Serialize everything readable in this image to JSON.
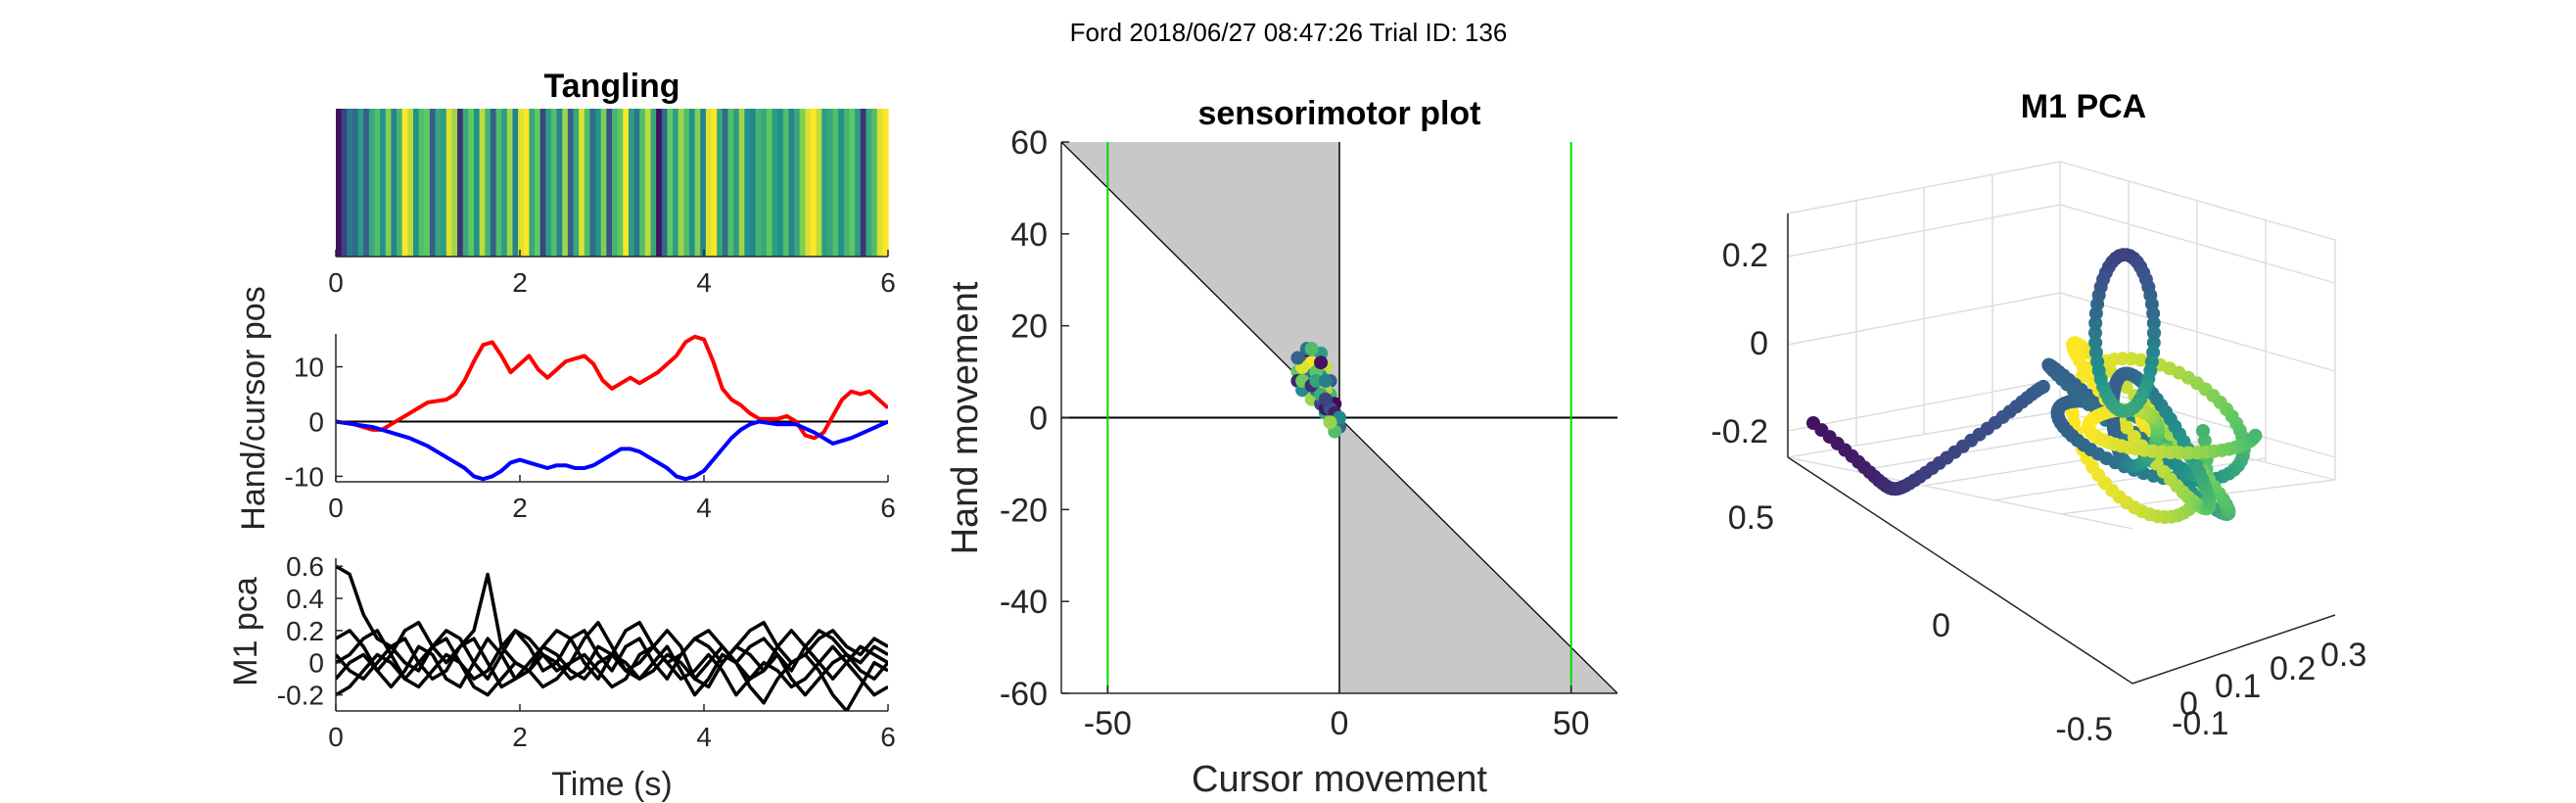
{
  "figure": {
    "suptitle": "Ford 2018/06/27 08:47:26 Trial ID: 136"
  },
  "colors": {
    "hand": "#0000ff",
    "cursor": "#ff0000",
    "pca_lines": "#000000",
    "feasible_region": "#c8c8c8",
    "boundary_lines": "#00dd00",
    "colormap": "viridis"
  },
  "chart_data": [
    {
      "id": "tangling",
      "type": "heatmap",
      "title": "Tangling",
      "xlabel": "",
      "ylabel": "",
      "xlim": [
        0,
        6
      ],
      "xticks": [
        "0",
        "2",
        "4",
        "6"
      ],
      "colormap": "viridis",
      "values": [
        0.05,
        0.2,
        0.4,
        0.35,
        0.55,
        0.3,
        0.6,
        0.7,
        0.5,
        0.8,
        0.45,
        0.65,
        1.0,
        0.9,
        0.5,
        0.7,
        0.75,
        0.3,
        0.6,
        0.55,
        0.95,
        0.85,
        0.15,
        0.6,
        0.75,
        0.5,
        0.9,
        0.65,
        0.3,
        0.7,
        0.55,
        0.85,
        0.45,
        0.95,
        1.0,
        0.6,
        0.75,
        0.2,
        0.55,
        0.7,
        0.45,
        0.85,
        0.3,
        0.6,
        0.95,
        0.7,
        0.35,
        0.5,
        0.8,
        0.25,
        0.65,
        0.75,
        1.0,
        0.55,
        0.4,
        0.7,
        0.9,
        0.6,
        0.05,
        0.35,
        0.75,
        0.55,
        0.85,
        0.7,
        0.5,
        0.8,
        0.45,
        0.95,
        1.0,
        0.6,
        0.35,
        0.7,
        0.55,
        0.85,
        0.5,
        0.45,
        0.65,
        0.6,
        0.75,
        0.55,
        0.5,
        0.7,
        0.45,
        0.6,
        0.8,
        0.95,
        1.0,
        0.9,
        0.55,
        0.6,
        0.7,
        0.5,
        0.65,
        0.75,
        0.55,
        0.15,
        0.6,
        0.7,
        0.95,
        1.0
      ]
    },
    {
      "id": "hand-cursor",
      "type": "line",
      "title": "",
      "xlabel": "",
      "ylabel": "Hand/cursor pos",
      "xlim": [
        0,
        6
      ],
      "ylim": [
        -11,
        16
      ],
      "xticks": [
        "0",
        "2",
        "4",
        "6"
      ],
      "yticks": [
        "-10",
        "0",
        "10"
      ],
      "series": [
        {
          "color": "#ff0000",
          "x": [
            0,
            0.2,
            0.4,
            0.5,
            0.6,
            0.8,
            1.0,
            1.2,
            1.3,
            1.4,
            1.5,
            1.6,
            1.7,
            1.8,
            1.9,
            2.0,
            2.1,
            2.2,
            2.3,
            2.4,
            2.5,
            2.6,
            2.7,
            2.8,
            2.9,
            3.0,
            3.1,
            3.2,
            3.3,
            3.4,
            3.5,
            3.6,
            3.7,
            3.8,
            3.9,
            4.0,
            4.1,
            4.2,
            4.3,
            4.4,
            4.5,
            4.6,
            4.7,
            4.8,
            4.9,
            5.0,
            5.1,
            5.2,
            5.3,
            5.4,
            5.5,
            5.6,
            5.7,
            5.8,
            5.9,
            6.0
          ],
          "y": [
            0,
            -0.5,
            -1.5,
            -1.5,
            -0.5,
            1.5,
            3.5,
            4,
            5,
            7.5,
            11,
            14,
            14.5,
            12,
            9,
            10.5,
            12,
            9.5,
            8,
            9.5,
            11,
            11.5,
            12,
            10.5,
            7.5,
            6,
            7,
            8,
            7,
            8,
            9,
            10.5,
            12,
            14.5,
            15.5,
            15,
            11,
            6,
            4,
            3,
            1.5,
            0.5,
            0.5,
            0.5,
            1,
            0,
            -2.5,
            -3,
            -2,
            1,
            4,
            5.5,
            5,
            5.5,
            4,
            2.5
          ]
        },
        {
          "color": "#0000ff",
          "x": [
            0,
            0.2,
            0.4,
            0.6,
            0.8,
            1.0,
            1.2,
            1.4,
            1.5,
            1.6,
            1.7,
            1.8,
            1.9,
            2.0,
            2.1,
            2.2,
            2.3,
            2.4,
            2.5,
            2.6,
            2.7,
            2.8,
            2.9,
            3.0,
            3.1,
            3.2,
            3.3,
            3.4,
            3.5,
            3.6,
            3.7,
            3.8,
            3.9,
            4.0,
            4.1,
            4.2,
            4.3,
            4.4,
            4.5,
            4.6,
            4.8,
            5.0,
            5.2,
            5.4,
            5.6,
            5.8,
            6.0
          ],
          "y": [
            0,
            -0.5,
            -1,
            -2,
            -3,
            -4.5,
            -6.5,
            -8.5,
            -10,
            -10.5,
            -10,
            -9,
            -7.5,
            -7,
            -7.5,
            -8,
            -8.5,
            -8,
            -8,
            -8.5,
            -8.5,
            -8,
            -7,
            -6,
            -5,
            -5,
            -5.5,
            -6.5,
            -7.5,
            -8.5,
            -10,
            -10.5,
            -10,
            -9,
            -7,
            -5,
            -3,
            -1.5,
            -0.5,
            0,
            -0.5,
            -0.5,
            -2,
            -4,
            -3,
            -1.5,
            0
          ]
        }
      ],
      "reference_line": {
        "y": 0,
        "color": "#000000"
      }
    },
    {
      "id": "m1-pca",
      "type": "line",
      "title": "",
      "xlabel": "Time (s)",
      "ylabel": "M1 pca",
      "xlim": [
        0,
        6
      ],
      "ylim": [
        -0.3,
        0.65
      ],
      "xticks": [
        "0",
        "2",
        "4",
        "6"
      ],
      "yticks": [
        "0.6",
        "0.4",
        "0.2",
        "0",
        "-0.2"
      ],
      "series_count": 6,
      "series": [
        {
          "y": [
            0.6,
            0.55,
            0.3,
            0.15,
            0.1,
            0.0,
            -0.05,
            0.1,
            0.2,
            0.15,
            0.0,
            -0.1,
            0.05,
            0.2,
            0.1,
            -0.05,
            0.0,
            0.15,
            0.2,
            0.05,
            -0.05,
            0.1,
            0.15,
            0.0,
            -0.1,
            0.05,
            0.15,
            0.2,
            0.1,
            0.0,
            0.1,
            0.15,
            0.05,
            -0.05,
            0.1,
            0.2,
            0.15,
            0.05,
            0.0,
            0.1,
            0.05
          ]
        },
        {
          "y": [
            0.15,
            0.2,
            0.1,
            -0.05,
            0.05,
            0.2,
            0.25,
            0.1,
            0.0,
            0.1,
            0.2,
            0.55,
            0.1,
            0.0,
            -0.05,
            0.1,
            0.2,
            0.15,
            0.0,
            -0.1,
            0.05,
            0.2,
            0.25,
            0.1,
            0.0,
            0.05,
            0.15,
            0.1,
            0.0,
            0.1,
            0.2,
            0.25,
            0.1,
            0.0,
            0.05,
            0.15,
            0.2,
            0.1,
            0.05,
            0.15,
            0.1
          ]
        },
        {
          "y": [
            0.0,
            0.05,
            0.15,
            0.2,
            0.05,
            -0.1,
            0.0,
            0.1,
            0.15,
            0.0,
            -0.1,
            -0.05,
            0.1,
            0.2,
            0.15,
            0.05,
            -0.05,
            0.0,
            0.15,
            0.25,
            0.1,
            -0.05,
            0.0,
            0.1,
            0.2,
            0.1,
            -0.1,
            -0.15,
            0.0,
            0.1,
            0.05,
            -0.05,
            0.1,
            0.2,
            0.1,
            0.0,
            -0.1,
            0.0,
            0.1,
            0.05,
            0.0
          ]
        },
        {
          "y": [
            -0.1,
            0.0,
            0.05,
            -0.05,
            -0.15,
            -0.05,
            0.1,
            0.05,
            -0.1,
            -0.15,
            0.0,
            0.15,
            0.05,
            -0.1,
            -0.05,
            0.05,
            0.0,
            -0.1,
            -0.05,
            0.1,
            0.05,
            -0.05,
            -0.1,
            0.0,
            0.1,
            -0.05,
            -0.2,
            -0.1,
            0.05,
            0.0,
            -0.1,
            -0.05,
            0.05,
            -0.1,
            -0.2,
            -0.1,
            0.0,
            0.05,
            -0.05,
            -0.1,
            0.0
          ]
        },
        {
          "y": [
            0.05,
            -0.05,
            -0.1,
            0.0,
            0.1,
            0.15,
            0.0,
            -0.1,
            -0.05,
            0.1,
            0.15,
            0.0,
            -0.15,
            -0.1,
            0.0,
            0.1,
            0.05,
            -0.05,
            -0.1,
            0.0,
            0.05,
            0.0,
            -0.1,
            -0.05,
            0.05,
            0.0,
            -0.1,
            0.0,
            0.1,
            0.0,
            -0.15,
            -0.25,
            -0.1,
            0.0,
            0.05,
            -0.05,
            -0.2,
            -0.3,
            -0.15,
            0.0,
            -0.05
          ]
        },
        {
          "y": [
            -0.2,
            -0.15,
            -0.05,
            0.05,
            0.0,
            -0.1,
            -0.15,
            -0.05,
            0.05,
            0.0,
            -0.15,
            -0.2,
            -0.1,
            0.0,
            -0.05,
            -0.15,
            -0.1,
            0.0,
            0.05,
            -0.05,
            -0.15,
            -0.1,
            0.05,
            0.1,
            0.0,
            -0.1,
            -0.05,
            0.05,
            -0.05,
            -0.2,
            -0.1,
            0.0,
            -0.05,
            -0.15,
            -0.1,
            0.0,
            0.1,
            0.0,
            -0.1,
            -0.2,
            -0.15
          ]
        }
      ]
    },
    {
      "id": "sensorimotor",
      "type": "scatter",
      "title": "sensorimotor plot",
      "xlabel": "Cursor movement",
      "ylabel": "Hand movement",
      "xlim": [
        -60,
        60
      ],
      "ylim": [
        -60,
        60
      ],
      "xticks": [
        "-50",
        "0",
        "50"
      ],
      "yticks": [
        "60",
        "40",
        "20",
        "0",
        "-20",
        "-40",
        "-60"
      ],
      "vertical_lines_x": [
        -50,
        50
      ],
      "points": [
        {
          "x": -7,
          "y": 14
        },
        {
          "x": -8,
          "y": 12
        },
        {
          "x": -9,
          "y": 10
        },
        {
          "x": -9,
          "y": 8
        },
        {
          "x": -8,
          "y": 6
        },
        {
          "x": -6,
          "y": 4
        },
        {
          "x": -4,
          "y": 3
        },
        {
          "x": -3,
          "y": 1
        },
        {
          "x": -1,
          "y": 0
        },
        {
          "x": 0,
          "y": -2
        },
        {
          "x": -1,
          "y": -3
        },
        {
          "x": -3,
          "y": 2
        },
        {
          "x": -5,
          "y": 6
        },
        {
          "x": -6,
          "y": 9
        },
        {
          "x": -5,
          "y": 12
        },
        {
          "x": -4,
          "y": 14
        },
        {
          "x": -3,
          "y": 11
        },
        {
          "x": -2,
          "y": 8
        },
        {
          "x": -2,
          "y": 5
        },
        {
          "x": -1,
          "y": 3
        },
        {
          "x": -7,
          "y": 10
        },
        {
          "x": -8,
          "y": 8
        },
        {
          "x": -6,
          "y": 7
        },
        {
          "x": -4,
          "y": 9
        },
        {
          "x": -3,
          "y": 6
        },
        {
          "x": -2,
          "y": 2
        },
        {
          "x": -4,
          "y": 5
        },
        {
          "x": -6,
          "y": 12
        },
        {
          "x": -7,
          "y": 15
        },
        {
          "x": -5,
          "y": 10
        },
        {
          "x": -1,
          "y": 1
        },
        {
          "x": 0,
          "y": 0
        },
        {
          "x": -2,
          "y": -1
        },
        {
          "x": -3,
          "y": 4
        },
        {
          "x": -5,
          "y": 8
        },
        {
          "x": -8,
          "y": 11
        },
        {
          "x": -9,
          "y": 13
        },
        {
          "x": -6,
          "y": 15
        },
        {
          "x": -4,
          "y": 12
        },
        {
          "x": -3,
          "y": 8
        }
      ]
    },
    {
      "id": "m1-pca-3d",
      "type": "scatter",
      "title": "M1 PCA",
      "xlabel": "",
      "ylabel": "",
      "zticks": [
        "0.2",
        "0",
        "-0.2"
      ],
      "xticks": [
        "0.5",
        "0",
        "-0.5"
      ],
      "yticks": [
        "-0.1",
        "0",
        "0.1",
        "0.2",
        "0.3"
      ],
      "colormap": "viridis"
    }
  ]
}
